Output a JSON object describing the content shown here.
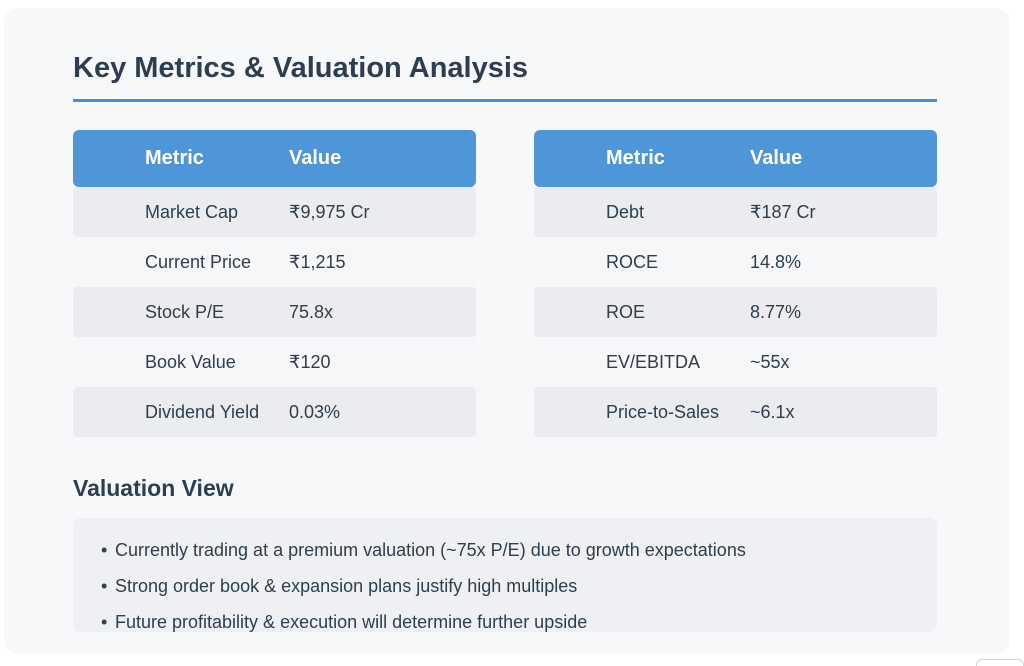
{
  "title": "Key Metrics & Valuation Analysis",
  "tables": {
    "left": {
      "headers": [
        "Metric",
        "Value"
      ],
      "rows": [
        [
          "Market Cap",
          "₹9,975 Cr"
        ],
        [
          "Current Price",
          "₹1,215"
        ],
        [
          "Stock P/E",
          "75.8x"
        ],
        [
          "Book Value",
          "₹120"
        ],
        [
          "Dividend Yield",
          "0.03%"
        ]
      ]
    },
    "right": {
      "headers": [
        "Metric",
        "Value"
      ],
      "rows": [
        [
          "Debt",
          "₹187 Cr"
        ],
        [
          "ROCE",
          "14.8%"
        ],
        [
          "ROE",
          "8.77%"
        ],
        [
          "EV/EBITDA",
          "~55x"
        ],
        [
          "Price-to-Sales",
          "~6.1x"
        ]
      ]
    }
  },
  "valuation_view": {
    "heading": "Valuation View",
    "bullet_symbol": "•",
    "points": [
      "Currently trading at a premium valuation (~75x P/E) due to growth expectations",
      "Strong order book & expansion plans justify high multiples",
      "Future profitability & execution will determine further upside"
    ]
  },
  "colors": {
    "header_bg": "#4f96d8",
    "title_text": "#2c3e50",
    "rule": "#4a8fd6",
    "row_odd": "#eaecef",
    "row_even": "#f6f7f9"
  }
}
